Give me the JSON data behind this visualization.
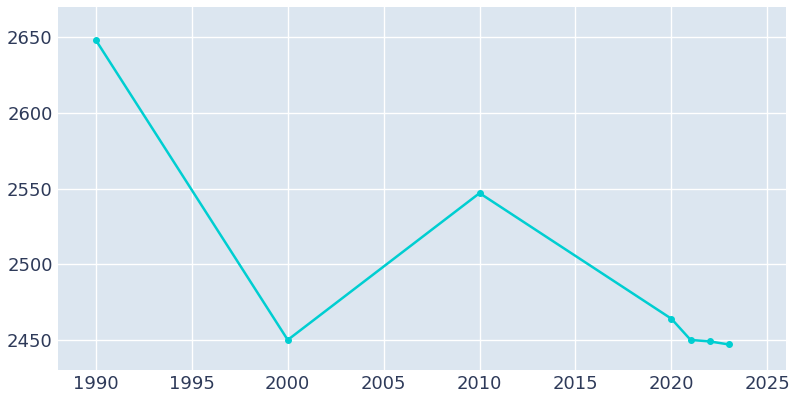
{
  "years": [
    1990,
    2000,
    2010,
    2020,
    2021,
    2022,
    2023
  ],
  "population": [
    2648,
    2450,
    2547,
    2464,
    2450,
    2449,
    2447
  ],
  "line_color": "#00CED1",
  "marker": "o",
  "marker_size": 4,
  "line_width": 1.8,
  "plot_bg_color": "#DCE6F0",
  "fig_bg_color": "#ffffff",
  "grid_color": "#ffffff",
  "xlim": [
    1988,
    2026
  ],
  "ylim": [
    2430,
    2670
  ],
  "xticks": [
    1990,
    1995,
    2000,
    2005,
    2010,
    2015,
    2020,
    2025
  ],
  "yticks": [
    2450,
    2500,
    2550,
    2600,
    2650
  ],
  "tick_color": "#2E3A59",
  "tick_fontsize": 13
}
